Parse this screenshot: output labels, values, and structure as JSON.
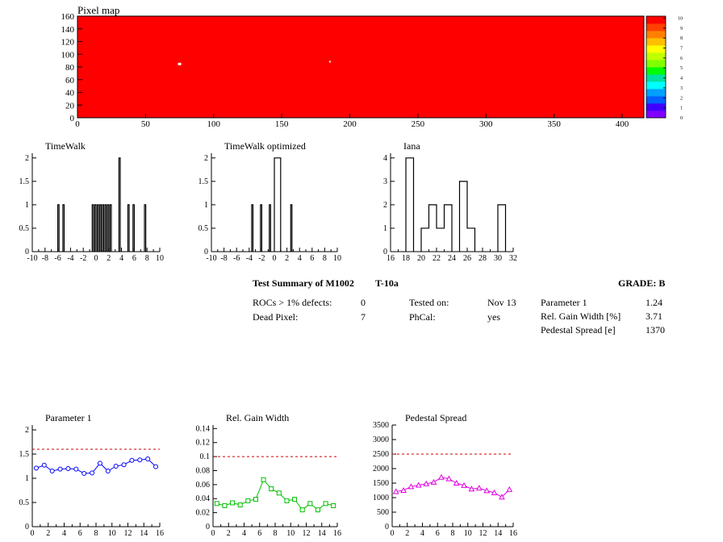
{
  "pixel_map": {
    "title": "Pixel map",
    "x_ticks": [
      "0",
      "50",
      "100",
      "150",
      "200",
      "250",
      "300",
      "350",
      "400"
    ],
    "y_ticks": [
      "0",
      "20",
      "40",
      "60",
      "80",
      "100",
      "120",
      "140",
      "160"
    ],
    "fill_color": "#ff0000",
    "white_spots": [
      {
        "x": 75,
        "y": 84
      },
      {
        "x": 186,
        "y": 87
      }
    ],
    "colorbar": {
      "ticks": [
        "0",
        "1",
        "2",
        "3",
        "4",
        "5",
        "6",
        "7",
        "8",
        "9",
        "10"
      ],
      "colors": [
        "#8000ff",
        "#4000ff",
        "#0060ff",
        "#00a0ff",
        "#00ffff",
        "#00e0a0",
        "#00ff00",
        "#80ff00",
        "#c0ff00",
        "#ffff00",
        "#ffc000",
        "#ff8000",
        "#ff4000",
        "#ff0000"
      ]
    }
  },
  "summary": {
    "title_left": "Test Summary of M1002",
    "title_mid": "T-10a",
    "grade": "GRADE:  B",
    "rows": [
      {
        "label": "ROCs > 1% defects:",
        "value": "0"
      },
      {
        "label": "Dead Pixel:",
        "value": "7"
      }
    ],
    "mid_rows": [
      {
        "label": "Tested on:",
        "value": "Nov 13"
      },
      {
        "label": "PhCal:",
        "value": "yes"
      }
    ],
    "right_rows": [
      {
        "label": "Parameter 1",
        "value": "1.24"
      },
      {
        "label": "Rel. Gain Width [%]",
        "value": "3.71"
      },
      {
        "label": "Pedestal Spread [e]",
        "value": "1370"
      }
    ]
  },
  "chart_data": [
    {
      "type": "bar",
      "title": "TimeWalk",
      "xlim": [
        -10,
        10
      ],
      "ylim": [
        0,
        2.1
      ],
      "x_ticks": [
        "-10",
        "-8",
        "-6",
        "-4",
        "-2",
        "0",
        "2",
        "4",
        "6",
        "8",
        "10"
      ],
      "y_ticks": [
        "0",
        "0.5",
        "1",
        "1.5",
        "2"
      ],
      "bin_width": 0.2,
      "bins": [
        {
          "x": -6.0,
          "y": 1
        },
        {
          "x": -5.2,
          "y": 1
        },
        {
          "x": -0.6,
          "y": 1
        },
        {
          "x": -0.2,
          "y": 1
        },
        {
          "x": 0.2,
          "y": 1
        },
        {
          "x": 0.6,
          "y": 1
        },
        {
          "x": 1.0,
          "y": 1
        },
        {
          "x": 1.4,
          "y": 1
        },
        {
          "x": 1.8,
          "y": 1
        },
        {
          "x": 2.2,
          "y": 1
        },
        {
          "x": 3.6,
          "y": 2
        },
        {
          "x": 5.0,
          "y": 1
        },
        {
          "x": 5.8,
          "y": 1
        },
        {
          "x": 7.6,
          "y": 1
        }
      ]
    },
    {
      "type": "bar",
      "title": "TimeWalk optimized",
      "xlim": [
        -10,
        10
      ],
      "ylim": [
        0,
        2.1
      ],
      "x_ticks": [
        "-10",
        "-8",
        "-6",
        "-4",
        "-2",
        "0",
        "2",
        "4",
        "6",
        "8",
        "10"
      ],
      "y_ticks": [
        "0",
        "0.5",
        "1",
        "1.5",
        "2"
      ],
      "bin_width": 0.2,
      "bins": [
        {
          "x": -3.6,
          "y": 1
        },
        {
          "x": -2.2,
          "y": 1
        },
        {
          "x": -0.8,
          "y": 1
        },
        {
          "x": 0.0,
          "y": 2
        },
        {
          "x": 0.2,
          "y": 2
        },
        {
          "x": 0.4,
          "y": 2
        },
        {
          "x": 0.6,
          "y": 2
        },
        {
          "x": 0.8,
          "y": 2
        },
        {
          "x": 2.6,
          "y": 1
        }
      ]
    },
    {
      "type": "bar",
      "title": "Iana",
      "xlim": [
        16,
        32
      ],
      "ylim": [
        0,
        4.2
      ],
      "x_ticks": [
        "16",
        "18",
        "20",
        "22",
        "24",
        "26",
        "28",
        "30",
        "32"
      ],
      "y_ticks": [
        "0",
        "1",
        "2",
        "3",
        "4"
      ],
      "bin_width": 1,
      "bins": [
        {
          "x": 18,
          "y": 4
        },
        {
          "x": 20,
          "y": 1
        },
        {
          "x": 21,
          "y": 2
        },
        {
          "x": 22,
          "y": 1
        },
        {
          "x": 23,
          "y": 2
        },
        {
          "x": 25,
          "y": 3
        },
        {
          "x": 26,
          "y": 1
        },
        {
          "x": 30,
          "y": 2
        }
      ]
    },
    {
      "type": "line",
      "title": "Parameter 1",
      "color": "#0000ff",
      "marker": "circle",
      "xlim": [
        0,
        16
      ],
      "ylim": [
        0,
        2.1
      ],
      "x_ticks": [
        "0",
        "2",
        "4",
        "6",
        "8",
        "10",
        "12",
        "14",
        "16"
      ],
      "y_ticks": [
        "0",
        "0.5",
        "1",
        "1.5",
        "2"
      ],
      "threshold": 1.6,
      "x": [
        0.5,
        1.5,
        2.5,
        3.5,
        4.5,
        5.5,
        6.5,
        7.5,
        8.5,
        9.5,
        10.5,
        11.5,
        12.5,
        13.5,
        14.5,
        15.5
      ],
      "values": [
        1.21,
        1.27,
        1.15,
        1.19,
        1.2,
        1.19,
        1.1,
        1.11,
        1.31,
        1.15,
        1.25,
        1.28,
        1.37,
        1.38,
        1.4,
        1.24
      ]
    },
    {
      "type": "line",
      "title": "Rel. Gain Width",
      "color": "#00c000",
      "marker": "square",
      "xlim": [
        0,
        16
      ],
      "ylim": [
        0,
        0.145
      ],
      "x_ticks": [
        "0",
        "2",
        "4",
        "6",
        "8",
        "10",
        "12",
        "14",
        "16"
      ],
      "y_ticks": [
        "0",
        "0.02",
        "0.04",
        "0.06",
        "0.08",
        "0.1",
        "0.12",
        "0.14"
      ],
      "threshold": 0.1,
      "x": [
        0.5,
        1.5,
        2.5,
        3.5,
        4.5,
        5.5,
        6.5,
        7.5,
        8.5,
        9.5,
        10.5,
        11.5,
        12.5,
        13.5,
        14.5,
        15.5
      ],
      "values": [
        0.033,
        0.03,
        0.034,
        0.031,
        0.037,
        0.039,
        0.067,
        0.054,
        0.048,
        0.037,
        0.039,
        0.024,
        0.033,
        0.024,
        0.033,
        0.03
      ]
    },
    {
      "type": "line",
      "title": "Pedestal Spread",
      "color": "#e000e0",
      "marker": "triangle",
      "xlim": [
        0,
        16
      ],
      "ylim": [
        0,
        3500
      ],
      "x_ticks": [
        "0",
        "2",
        "4",
        "6",
        "8",
        "10",
        "12",
        "14",
        "16"
      ],
      "y_ticks": [
        "0",
        "500",
        "1000",
        "1500",
        "2000",
        "2500",
        "3000",
        "3500"
      ],
      "threshold": 2500,
      "x": [
        0.5,
        1.5,
        2.5,
        3.5,
        4.5,
        5.5,
        6.5,
        7.5,
        8.5,
        9.5,
        10.5,
        11.5,
        12.5,
        13.5,
        14.5,
        15.5
      ],
      "values": [
        1210,
        1250,
        1380,
        1430,
        1480,
        1530,
        1700,
        1650,
        1500,
        1420,
        1300,
        1330,
        1240,
        1170,
        1020,
        1280
      ]
    }
  ]
}
